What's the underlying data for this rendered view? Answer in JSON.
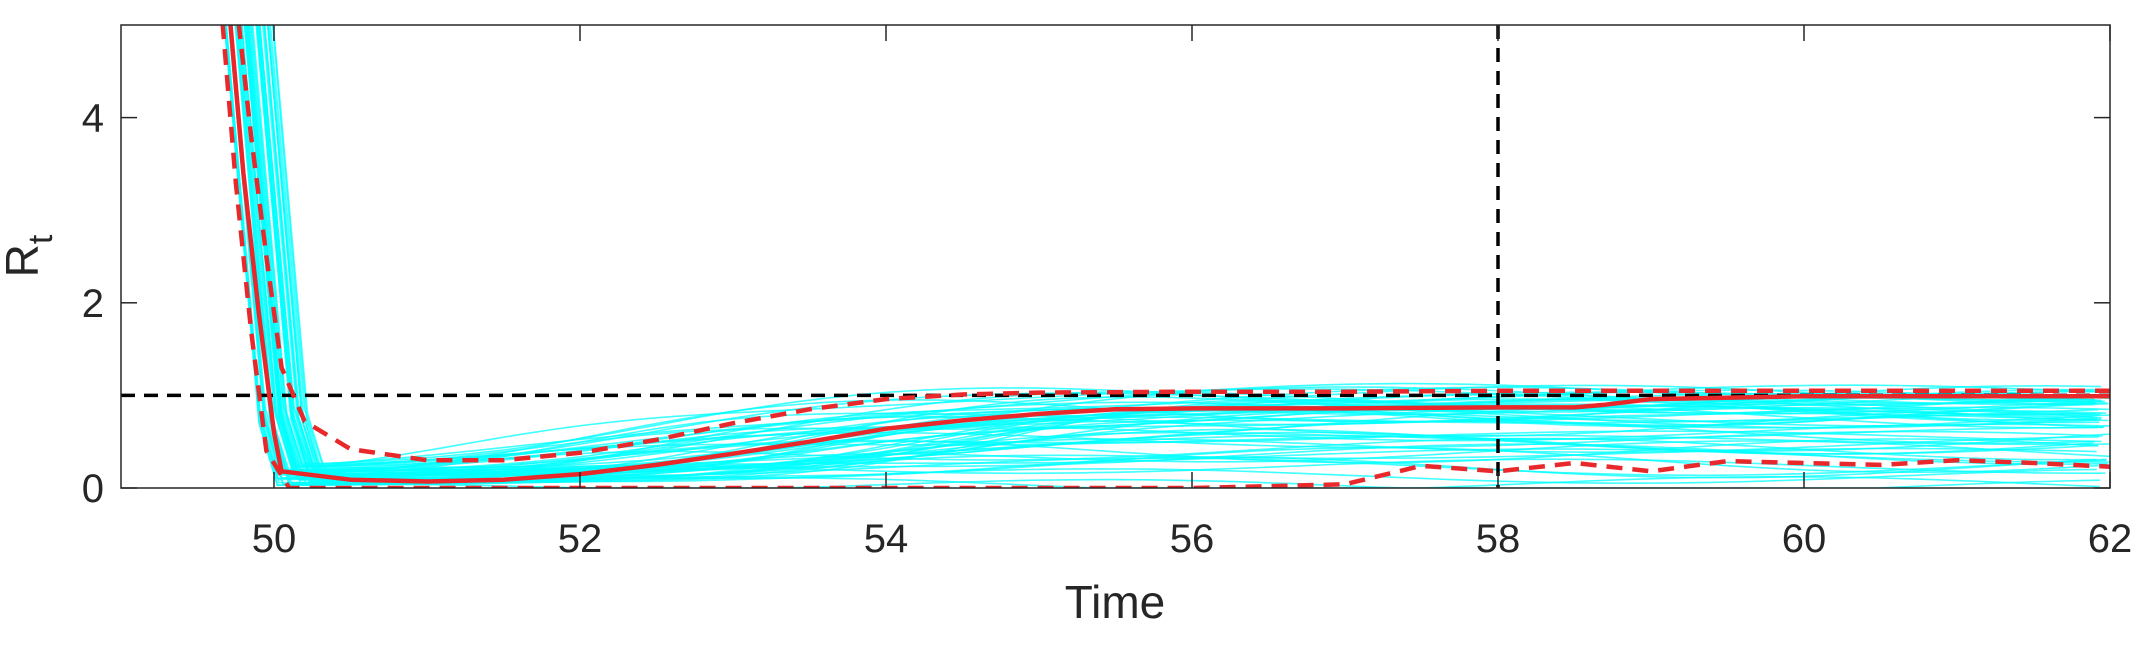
{
  "chart_data": {
    "type": "line",
    "xlabel": "Time",
    "ylabel": "R",
    "ylabel_subscript": "t",
    "xlim": [
      49,
      62
    ],
    "ylim": [
      0,
      5
    ],
    "xticks": [
      50,
      52,
      54,
      56,
      58,
      60,
      62
    ],
    "yticks": [
      0,
      2,
      4
    ],
    "grid": false,
    "legend": "none",
    "reference_lines": {
      "horizontal_y": 1,
      "vertical_x": 58
    },
    "ensemble": {
      "color": "#00ffff",
      "description_count": 60
    },
    "series": [
      {
        "style": "solid",
        "color": "#e8282b",
        "x": [
          49.7,
          49.8,
          49.9,
          50.0,
          50.05,
          50.5,
          51.0,
          51.5,
          52.0,
          52.5,
          53.0,
          53.5,
          54.0,
          54.5,
          55.0,
          55.5,
          56.0,
          57.0,
          58.0,
          58.5,
          58.7,
          59.0,
          60.0,
          61.0,
          62.0
        ],
        "y": [
          5.3,
          3.4,
          1.9,
          0.6,
          0.18,
          0.09,
          0.07,
          0.09,
          0.15,
          0.25,
          0.37,
          0.5,
          0.64,
          0.73,
          0.8,
          0.85,
          0.86,
          0.86,
          0.87,
          0.87,
          0.9,
          0.96,
          0.99,
          0.99,
          0.99
        ]
      },
      {
        "style": "dashed",
        "color": "#e8282b",
        "x": [
          49.75,
          49.85,
          49.95,
          50.05,
          50.2,
          50.5,
          51.0,
          51.5,
          52.0,
          52.5,
          53.0,
          53.5,
          54.0,
          54.5,
          55.0,
          56.0,
          57.0,
          58.0,
          59.0,
          60.0,
          61.0,
          62.0
        ],
        "y": [
          5.3,
          3.8,
          2.5,
          1.3,
          0.72,
          0.42,
          0.3,
          0.3,
          0.38,
          0.52,
          0.7,
          0.85,
          0.96,
          1.01,
          1.03,
          1.04,
          1.04,
          1.05,
          1.05,
          1.05,
          1.05,
          1.05
        ]
      },
      {
        "style": "dashed",
        "color": "#e8282b",
        "x": [
          49.65,
          49.75,
          49.85,
          49.95,
          50.1,
          50.5,
          51.0,
          52.0,
          53.0,
          54.0,
          55.0,
          56.0,
          57.0,
          57.5,
          58.0,
          58.5,
          59.0,
          59.5,
          60.0,
          60.5,
          61.0,
          61.5,
          62.0
        ],
        "y": [
          5.3,
          3.3,
          1.7,
          0.4,
          0.0,
          0.0,
          0.0,
          0.0,
          0.0,
          0.0,
          0.0,
          0.0,
          0.04,
          0.24,
          0.18,
          0.27,
          0.18,
          0.29,
          0.27,
          0.25,
          0.3,
          0.27,
          0.23
        ]
      }
    ]
  }
}
